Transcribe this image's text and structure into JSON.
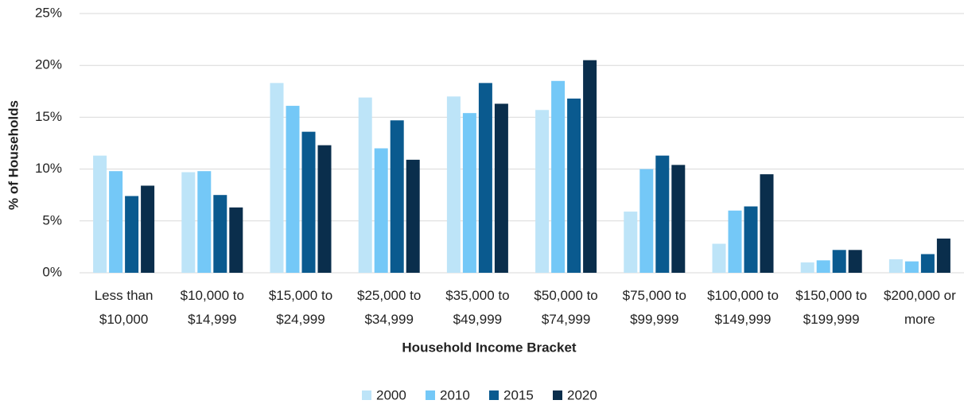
{
  "chart_data": {
    "type": "bar",
    "x_label": "Household Income Bracket",
    "y_label": "% of Households",
    "categories": [
      "Less than $10,000",
      "$10,000 to $14,999",
      "$15,000 to $24,999",
      "$25,000 to $34,999",
      "$35,000 to $49,999",
      "$50,000 to $74,999",
      "$75,000 to $99,999",
      "$100,000 to $149,999",
      "$150,000 to $199,999",
      "$200,000 or more"
    ],
    "series": [
      {
        "name": "2000",
        "color": "#bde4f8",
        "values": [
          11.3,
          9.7,
          18.3,
          16.9,
          17.0,
          15.7,
          5.9,
          2.8,
          1.0,
          1.3
        ]
      },
      {
        "name": "2010",
        "color": "#74c8f7",
        "values": [
          9.8,
          9.8,
          16.1,
          12.0,
          15.4,
          18.5,
          10.0,
          6.0,
          1.2,
          1.1
        ]
      },
      {
        "name": "2015",
        "color": "#0a5a8f",
        "values": [
          7.4,
          7.5,
          13.6,
          14.7,
          18.3,
          16.8,
          11.3,
          6.4,
          2.2,
          1.8
        ]
      },
      {
        "name": "2020",
        "color": "#0a2e4c",
        "values": [
          8.4,
          6.3,
          12.3,
          10.9,
          16.3,
          20.5,
          10.4,
          9.5,
          2.2,
          3.3
        ]
      }
    ],
    "ylim": [
      0,
      25
    ],
    "yticks": [
      {
        "value": 0,
        "label": "0%"
      },
      {
        "value": 5,
        "label": "5%"
      },
      {
        "value": 10,
        "label": "10%"
      },
      {
        "value": 15,
        "label": "15%"
      },
      {
        "value": 20,
        "label": "20%"
      },
      {
        "value": 25,
        "label": "25%"
      }
    ],
    "grid": true,
    "legend": "bottom"
  }
}
